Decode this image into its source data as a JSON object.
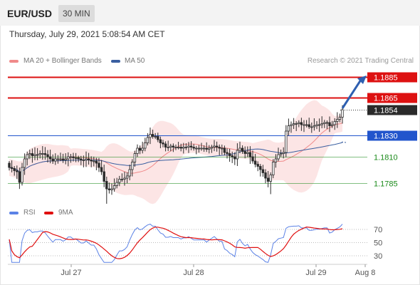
{
  "header": {
    "symbol": "EUR/USD",
    "timeframe": "30 MIN"
  },
  "timestamp": "Thursday, July 29, 2021 5:08:54 AM CET",
  "legend": {
    "bollinger_label": "MA 20 + Bollinger Bands",
    "ma50_label": "MA 50",
    "rsi_label": "RSI",
    "rsi_ma_label": "9MA"
  },
  "credit": "Research © 2021 Trading Central",
  "colors": {
    "bollinger": "#f08a8a",
    "ma50": "#3a5fa0",
    "resistance": "#dd1111",
    "pivot": "#2255cc",
    "support": "#1a8a1a",
    "candle": "#2a2a2a",
    "rsi": "#5b82e6",
    "rsi_ma": "#e01010",
    "arrow": "#2e5fb0"
  },
  "chart_data": {
    "type": "candlestick",
    "price_range": [
      1.177,
      1.1892
    ],
    "x_labels": [
      "Jul 27",
      "Jul 28",
      "Jul 29",
      "Aug 8"
    ],
    "levels": [
      {
        "label": "1.1885",
        "value": 1.1885,
        "kind": "resistance"
      },
      {
        "label": "1.1865",
        "value": 1.1865,
        "kind": "resistance"
      },
      {
        "label": "1.1854",
        "value": 1.1854,
        "kind": "last_price"
      },
      {
        "label": "1.1830",
        "value": 1.183,
        "kind": "pivot"
      },
      {
        "label": "1.1810",
        "value": 1.181,
        "kind": "support"
      },
      {
        "label": "1.1785",
        "value": 1.1785,
        "kind": "support"
      }
    ],
    "close": [
      1.18,
      1.1799,
      1.1797,
      1.1796,
      1.1786,
      1.18,
      1.1808,
      1.1812,
      1.1813,
      1.1811,
      1.1812,
      1.1812,
      1.1813,
      1.1813,
      1.1812,
      1.181,
      1.1808,
      1.1806,
      1.1808,
      1.1808,
      1.1808,
      1.1807,
      1.1808,
      1.181,
      1.181,
      1.1809,
      1.1809,
      1.1808,
      1.1807,
      1.1807,
      1.1808,
      1.1807,
      1.1806,
      1.1806,
      1.1804,
      1.18,
      1.1796,
      1.1787,
      1.178,
      1.1779,
      1.178,
      1.1783,
      1.1786,
      1.1789,
      1.1789,
      1.179,
      1.1792,
      1.1798,
      1.1805,
      1.1813,
      1.1818,
      1.1816,
      1.1818,
      1.1823,
      1.1828,
      1.1831,
      1.1829,
      1.1829,
      1.1826,
      1.1823,
      1.1822,
      1.1819,
      1.1819,
      1.182,
      1.1819,
      1.1819,
      1.1819,
      1.1818,
      1.1819,
      1.1819,
      1.182,
      1.1819,
      1.1818,
      1.1818,
      1.1818,
      1.1818,
      1.1818,
      1.1817,
      1.1818,
      1.1819,
      1.182,
      1.1819,
      1.1818,
      1.1818,
      1.1814,
      1.1813,
      1.1811,
      1.181,
      1.1808,
      1.1816,
      1.1818,
      1.1815,
      1.1813,
      1.1814,
      1.181,
      1.1806,
      1.1803,
      1.1801,
      1.1798,
      1.1795,
      1.179,
      1.1787,
      1.1793,
      1.1805,
      1.1808,
      1.1812,
      1.1813,
      1.1814,
      1.1834,
      1.1839,
      1.184,
      1.1841,
      1.1841,
      1.1842,
      1.184,
      1.184,
      1.184,
      1.1838,
      1.1838,
      1.1839,
      1.184,
      1.184,
      1.1841,
      1.1842,
      1.1842,
      1.1839,
      1.184,
      1.1843,
      1.1845,
      1.1847,
      1.1854
    ],
    "rsi_ticks": [
      70,
      50,
      30
    ]
  }
}
